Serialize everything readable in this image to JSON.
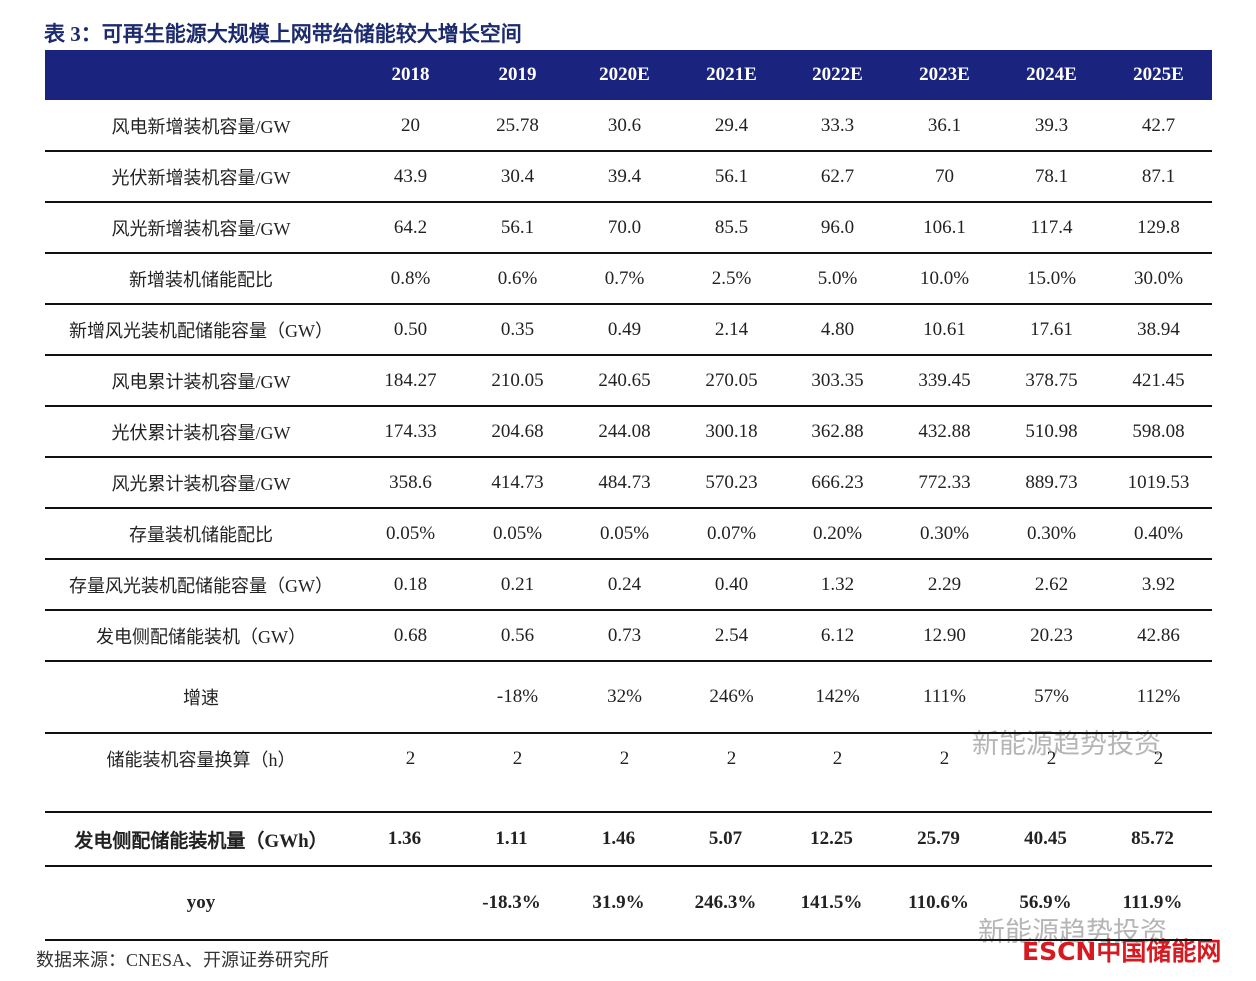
{
  "header": {
    "title": "表 3：可再生能源大规模上网带给储能较大增长空间"
  },
  "table": {
    "columns": [
      "2018",
      "2019",
      "2020E",
      "2021E",
      "2022E",
      "2023E",
      "2024E",
      "2025E"
    ],
    "rows": [
      [
        "风电新增装机容量/GW",
        "20",
        "25.78",
        "30.6",
        "29.4",
        "33.3",
        "36.1",
        "39.3",
        "42.7"
      ],
      [
        "光伏新增装机容量/GW",
        "43.9",
        "30.4",
        "39.4",
        "56.1",
        "62.7",
        "70",
        "78.1",
        "87.1"
      ],
      [
        "风光新增装机容量/GW",
        "64.2",
        "56.1",
        "70.0",
        "85.5",
        "96.0",
        "106.1",
        "117.4",
        "129.8"
      ],
      [
        "新增装机储能配比",
        "0.8%",
        "0.6%",
        "0.7%",
        "2.5%",
        "5.0%",
        "10.0%",
        "15.0%",
        "30.0%"
      ],
      [
        "新增风光装机配储能容量（GW）",
        "0.50",
        "0.35",
        "0.49",
        "2.14",
        "4.80",
        "10.61",
        "17.61",
        "38.94"
      ],
      [
        "风电累计装机容量/GW",
        "184.27",
        "210.05",
        "240.65",
        "270.05",
        "303.35",
        "339.45",
        "378.75",
        "421.45"
      ],
      [
        "光伏累计装机容量/GW",
        "174.33",
        "204.68",
        "244.08",
        "300.18",
        "362.88",
        "432.88",
        "510.98",
        "598.08"
      ],
      [
        "风光累计装机容量/GW",
        "358.6",
        "414.73",
        "484.73",
        "570.23",
        "666.23",
        "772.33",
        "889.73",
        "1019.53"
      ],
      [
        "存量装机储能配比",
        "0.05%",
        "0.05%",
        "0.05%",
        "0.07%",
        "0.20%",
        "0.30%",
        "0.30%",
        "0.40%"
      ],
      [
        "存量风光装机配储能容量（GW）",
        "0.18",
        "0.21",
        "0.24",
        "0.40",
        "1.32",
        "2.29",
        "2.62",
        "3.92"
      ],
      [
        "发电侧配储能装机（GW）",
        "0.68",
        "0.56",
        "0.73",
        "2.54",
        "6.12",
        "12.90",
        "20.23",
        "42.86"
      ],
      [
        "增速",
        null,
        "-18%",
        "32%",
        "246%",
        "142%",
        "111%",
        "57%",
        "112%"
      ],
      [
        "储能装机容量换算（h）",
        "2",
        "2",
        "2",
        "2",
        "2",
        "2",
        "2",
        "2"
      ],
      [
        "发电侧配储能装机量（GWh）",
        "1.36",
        "1.11",
        "1.46",
        "5.07",
        "12.25",
        "25.79",
        "40.45",
        "85.72"
      ],
      [
        "yoy",
        null,
        "-18.3%",
        "31.9%",
        "246.3%",
        "141.5%",
        "110.6%",
        "56.9%",
        "111.9%"
      ]
    ]
  },
  "source": "数据来源：CNESA、开源证券研究所",
  "watermarks": [
    "新能源趋势投资",
    "新能源趋势投资"
  ],
  "logo": {
    "brand": "ESCN",
    "name": "中国储能网"
  }
}
